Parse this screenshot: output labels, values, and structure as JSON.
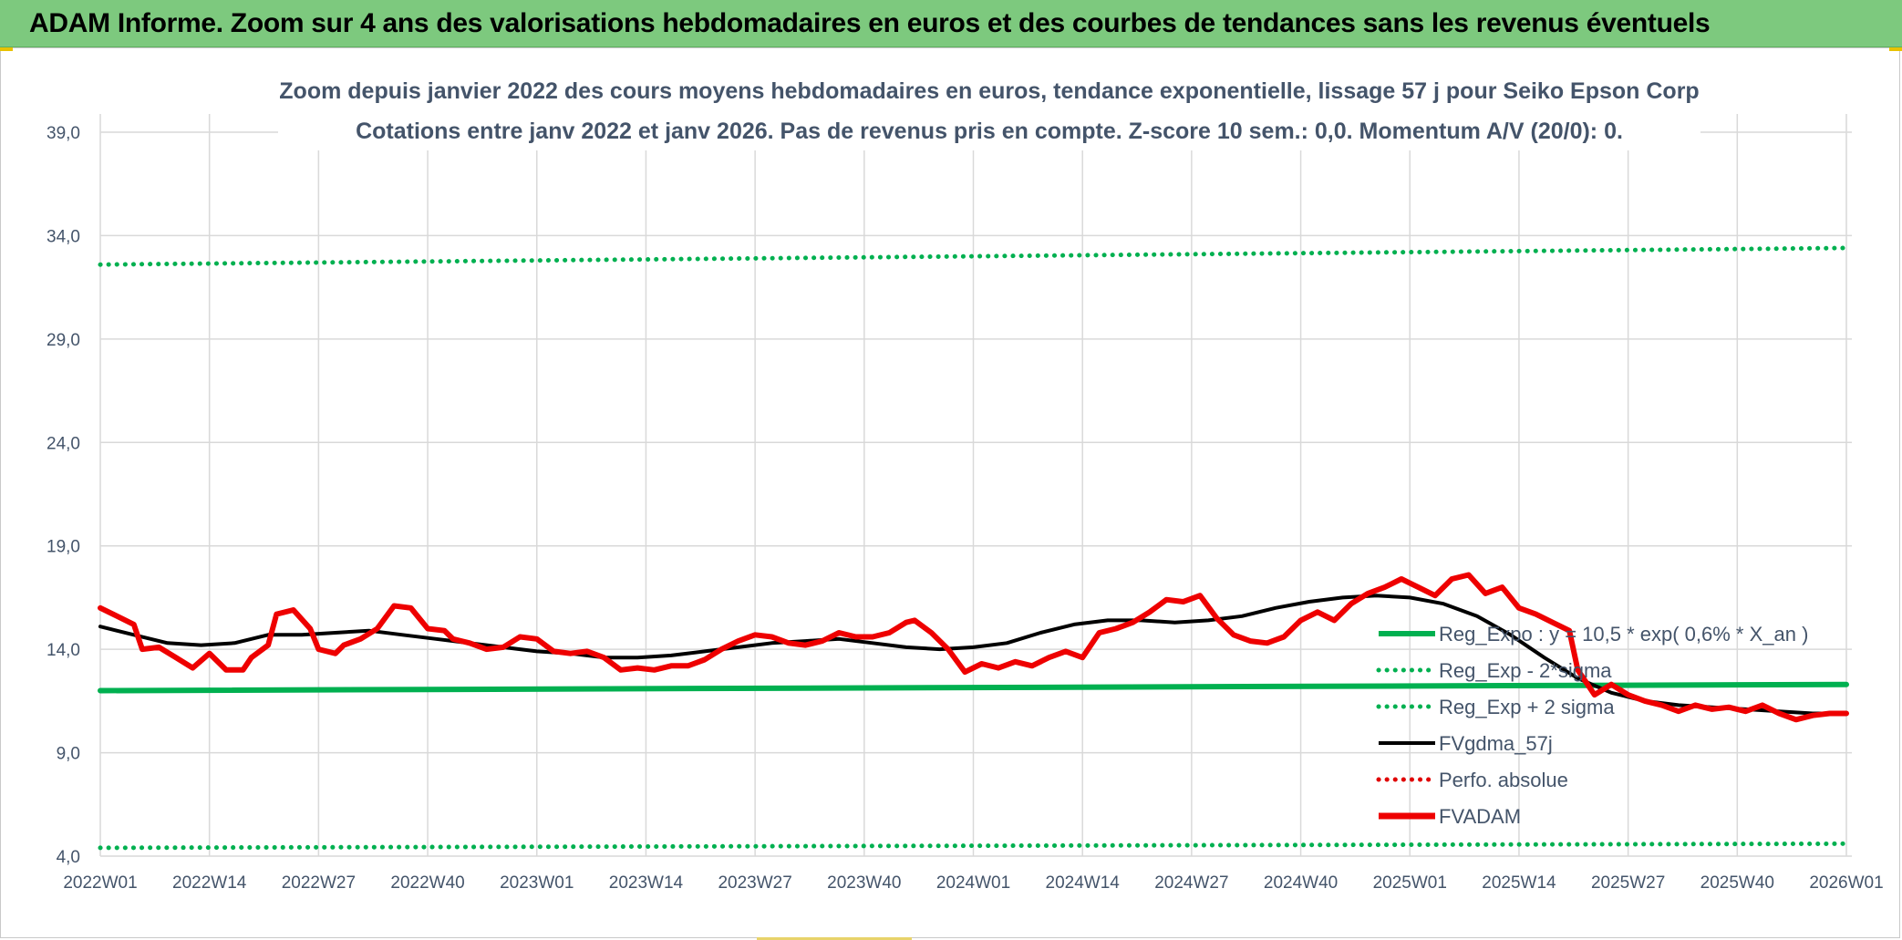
{
  "banner": {
    "title": "ADAM Informe. Zoom sur 4 ans des valorisations hebdomadaires en euros et des courbes de tendances sans les revenus éventuels"
  },
  "chart_data": {
    "type": "line",
    "title_line1": "Zoom depuis janvier 2022 des cours moyens hebdomadaires en euros, tendance exponentielle, lissage 57 j pour Seiko Epson Corp",
    "title_line2": "Cotations entre janv 2022 et janv 2026. Pas de revenus pris en compte. Z-score 10 sem.: 0,0. Momentum A/V (20/0): 0.",
    "ylim": [
      4,
      39
    ],
    "y_ticks": [
      {
        "value": 4,
        "label": "4,0"
      },
      {
        "value": 9,
        "label": "9,0"
      },
      {
        "value": 14,
        "label": "14,0"
      },
      {
        "value": 19,
        "label": "19,0"
      },
      {
        "value": 24,
        "label": "24,0"
      },
      {
        "value": 29,
        "label": "29,0"
      },
      {
        "value": 34,
        "label": "34,0"
      },
      {
        "value": 39,
        "label": "39,0"
      }
    ],
    "x_range": [
      0,
      208
    ],
    "x_ticks": [
      {
        "week": 0,
        "label": "2022W01"
      },
      {
        "week": 13,
        "label": "2022W14"
      },
      {
        "week": 26,
        "label": "2022W27"
      },
      {
        "week": 39,
        "label": "2022W40"
      },
      {
        "week": 52,
        "label": "2023W01"
      },
      {
        "week": 65,
        "label": "2023W14"
      },
      {
        "week": 78,
        "label": "2023W27"
      },
      {
        "week": 91,
        "label": "2023W40"
      },
      {
        "week": 104,
        "label": "2024W01"
      },
      {
        "week": 117,
        "label": "2024W14"
      },
      {
        "week": 130,
        "label": "2024W27"
      },
      {
        "week": 143,
        "label": "2024W40"
      },
      {
        "week": 156,
        "label": "2025W01"
      },
      {
        "week": 169,
        "label": "2025W14"
      },
      {
        "week": 182,
        "label": "2025W27"
      },
      {
        "week": 195,
        "label": "2025W40"
      },
      {
        "week": 208,
        "label": "2026W01"
      }
    ],
    "grid": true,
    "legend_position": "right",
    "series": [
      {
        "name": "Reg_Expo : y = 10,5 * exp( 0,6% *  X_an )",
        "color": "#00b050",
        "style": "solid",
        "kind": "reg",
        "points": [
          [
            0,
            12.0
          ],
          [
            208,
            12.3
          ]
        ]
      },
      {
        "name": "Reg_Exp - 2*sigma",
        "color": "#00b050",
        "style": "dotted",
        "kind": "lower",
        "points": [
          [
            0,
            4.4
          ],
          [
            208,
            4.6
          ]
        ]
      },
      {
        "name": "Reg_Exp + 2 sigma",
        "color": "#00b050",
        "style": "dotted",
        "kind": "upper",
        "points": [
          [
            0,
            32.6
          ],
          [
            208,
            33.4
          ]
        ]
      },
      {
        "name": "FVgdma_57j",
        "color": "#000000",
        "style": "solid",
        "kind": "ma",
        "points": [
          [
            0,
            15.1
          ],
          [
            4,
            14.7
          ],
          [
            8,
            14.3
          ],
          [
            12,
            14.2
          ],
          [
            16,
            14.3
          ],
          [
            20,
            14.7
          ],
          [
            24,
            14.7
          ],
          [
            28,
            14.8
          ],
          [
            32,
            14.9
          ],
          [
            36,
            14.7
          ],
          [
            40,
            14.5
          ],
          [
            44,
            14.3
          ],
          [
            48,
            14.1
          ],
          [
            52,
            13.9
          ],
          [
            56,
            13.8
          ],
          [
            60,
            13.6
          ],
          [
            64,
            13.6
          ],
          [
            68,
            13.7
          ],
          [
            72,
            13.9
          ],
          [
            76,
            14.1
          ],
          [
            80,
            14.3
          ],
          [
            84,
            14.4
          ],
          [
            88,
            14.5
          ],
          [
            92,
            14.3
          ],
          [
            96,
            14.1
          ],
          [
            100,
            14.0
          ],
          [
            104,
            14.1
          ],
          [
            108,
            14.3
          ],
          [
            112,
            14.8
          ],
          [
            116,
            15.2
          ],
          [
            120,
            15.4
          ],
          [
            124,
            15.4
          ],
          [
            128,
            15.3
          ],
          [
            132,
            15.4
          ],
          [
            136,
            15.6
          ],
          [
            140,
            16.0
          ],
          [
            144,
            16.3
          ],
          [
            148,
            16.5
          ],
          [
            152,
            16.6
          ],
          [
            156,
            16.5
          ],
          [
            160,
            16.2
          ],
          [
            164,
            15.6
          ],
          [
            168,
            14.7
          ],
          [
            172,
            13.6
          ],
          [
            176,
            12.6
          ],
          [
            180,
            11.9
          ],
          [
            184,
            11.5
          ],
          [
            188,
            11.3
          ],
          [
            192,
            11.2
          ],
          [
            196,
            11.1
          ],
          [
            200,
            11.0
          ],
          [
            204,
            10.9
          ],
          [
            208,
            10.9
          ]
        ]
      },
      {
        "name": "Perfo. absolue",
        "color": "#e00000",
        "style": "dotted",
        "kind": "perf",
        "points": []
      },
      {
        "name": "FVADAM",
        "color": "#ee0000",
        "style": "solid",
        "kind": "price",
        "points": [
          [
            0,
            16.0
          ],
          [
            2,
            15.6
          ],
          [
            4,
            15.2
          ],
          [
            5,
            14.0
          ],
          [
            7,
            14.1
          ],
          [
            9,
            13.6
          ],
          [
            11,
            13.1
          ],
          [
            13,
            13.8
          ],
          [
            15,
            13.0
          ],
          [
            17,
            13.0
          ],
          [
            18,
            13.6
          ],
          [
            20,
            14.2
          ],
          [
            21,
            15.7
          ],
          [
            23,
            15.9
          ],
          [
            25,
            15.0
          ],
          [
            26,
            14.0
          ],
          [
            28,
            13.8
          ],
          [
            29,
            14.2
          ],
          [
            31,
            14.5
          ],
          [
            33,
            15.0
          ],
          [
            35,
            16.1
          ],
          [
            37,
            16.0
          ],
          [
            39,
            15.0
          ],
          [
            41,
            14.9
          ],
          [
            42,
            14.5
          ],
          [
            44,
            14.3
          ],
          [
            46,
            14.0
          ],
          [
            48,
            14.1
          ],
          [
            50,
            14.6
          ],
          [
            52,
            14.5
          ],
          [
            54,
            13.9
          ],
          [
            56,
            13.8
          ],
          [
            58,
            13.9
          ],
          [
            60,
            13.6
          ],
          [
            62,
            13.0
          ],
          [
            64,
            13.1
          ],
          [
            66,
            13.0
          ],
          [
            68,
            13.2
          ],
          [
            70,
            13.2
          ],
          [
            72,
            13.5
          ],
          [
            74,
            14.0
          ],
          [
            76,
            14.4
          ],
          [
            78,
            14.7
          ],
          [
            80,
            14.6
          ],
          [
            82,
            14.3
          ],
          [
            84,
            14.2
          ],
          [
            86,
            14.4
          ],
          [
            88,
            14.8
          ],
          [
            90,
            14.6
          ],
          [
            92,
            14.6
          ],
          [
            94,
            14.8
          ],
          [
            96,
            15.3
          ],
          [
            97,
            15.4
          ],
          [
            99,
            14.8
          ],
          [
            101,
            14.0
          ],
          [
            103,
            12.9
          ],
          [
            105,
            13.3
          ],
          [
            107,
            13.1
          ],
          [
            109,
            13.4
          ],
          [
            111,
            13.2
          ],
          [
            113,
            13.6
          ],
          [
            115,
            13.9
          ],
          [
            117,
            13.6
          ],
          [
            119,
            14.8
          ],
          [
            121,
            15.0
          ],
          [
            123,
            15.3
          ],
          [
            125,
            15.8
          ],
          [
            127,
            16.4
          ],
          [
            129,
            16.3
          ],
          [
            131,
            16.6
          ],
          [
            133,
            15.5
          ],
          [
            135,
            14.7
          ],
          [
            137,
            14.4
          ],
          [
            139,
            14.3
          ],
          [
            141,
            14.6
          ],
          [
            143,
            15.4
          ],
          [
            145,
            15.8
          ],
          [
            147,
            15.4
          ],
          [
            149,
            16.2
          ],
          [
            151,
            16.7
          ],
          [
            153,
            17.0
          ],
          [
            155,
            17.4
          ],
          [
            157,
            17.0
          ],
          [
            159,
            16.6
          ],
          [
            161,
            17.4
          ],
          [
            163,
            17.6
          ],
          [
            165,
            16.7
          ],
          [
            167,
            17.0
          ],
          [
            169,
            16.0
          ],
          [
            171,
            15.7
          ],
          [
            173,
            15.3
          ],
          [
            175,
            14.9
          ],
          [
            176,
            13.0
          ],
          [
            178,
            11.8
          ],
          [
            180,
            12.3
          ],
          [
            182,
            11.8
          ],
          [
            184,
            11.5
          ],
          [
            186,
            11.3
          ],
          [
            188,
            11.0
          ],
          [
            190,
            11.3
          ],
          [
            192,
            11.1
          ],
          [
            194,
            11.2
          ],
          [
            196,
            11.0
          ],
          [
            198,
            11.3
          ],
          [
            200,
            10.9
          ],
          [
            202,
            10.6
          ],
          [
            204,
            10.8
          ],
          [
            206,
            10.9
          ],
          [
            208,
            10.9
          ]
        ]
      }
    ]
  }
}
